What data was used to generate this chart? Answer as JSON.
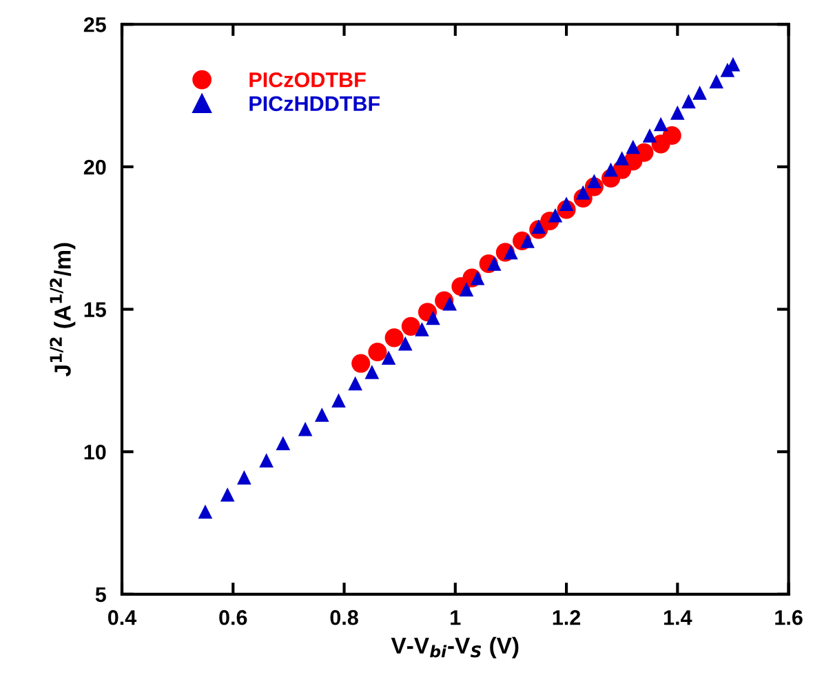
{
  "chart_data": {
    "type": "scatter",
    "xlabel": "V-V$_{bi}$-V$_{S}$ (V)",
    "ylabel": "J$^{1/2}$ (A$^{1/2}$/m)",
    "xlim": [
      0.4,
      1.6
    ],
    "xticks": [
      0.4,
      0.6,
      0.8,
      1,
      1.2,
      1.4,
      1.6
    ],
    "ylim": [
      5,
      25
    ],
    "yticks": [
      5,
      10,
      15,
      20,
      25
    ],
    "grid": false,
    "legend": "top left",
    "series": [
      {
        "name": "PICzODTBF",
        "color": "#ff0000",
        "marker": "circle",
        "x": [
          0.83,
          0.86,
          0.89,
          0.92,
          0.95,
          0.98,
          1.01,
          1.03,
          1.06,
          1.09,
          1.12,
          1.15,
          1.17,
          1.2,
          1.23,
          1.25,
          1.28,
          1.3,
          1.32,
          1.34,
          1.37,
          1.39
        ],
        "values": [
          13.1,
          13.5,
          14.0,
          14.4,
          14.9,
          15.3,
          15.8,
          16.1,
          16.6,
          17.0,
          17.4,
          17.8,
          18.1,
          18.5,
          18.9,
          19.3,
          19.6,
          19.9,
          20.2,
          20.5,
          20.8,
          21.1
        ]
      },
      {
        "name": "PICzHDDTBF",
        "color": "#0000cc",
        "marker": "triangle",
        "x": [
          0.55,
          0.59,
          0.62,
          0.66,
          0.69,
          0.73,
          0.76,
          0.79,
          0.82,
          0.85,
          0.88,
          0.91,
          0.94,
          0.96,
          0.99,
          1.02,
          1.04,
          1.07,
          1.1,
          1.13,
          1.15,
          1.18,
          1.2,
          1.23,
          1.25,
          1.28,
          1.3,
          1.32,
          1.35,
          1.37,
          1.4,
          1.42,
          1.44,
          1.47,
          1.49,
          1.5
        ],
        "values": [
          7.9,
          8.5,
          9.1,
          9.7,
          10.3,
          10.8,
          11.3,
          11.8,
          12.4,
          12.8,
          13.3,
          13.8,
          14.3,
          14.7,
          15.2,
          15.7,
          16.1,
          16.6,
          17.0,
          17.4,
          17.9,
          18.3,
          18.7,
          19.1,
          19.5,
          19.9,
          20.3,
          20.7,
          21.1,
          21.5,
          21.9,
          22.3,
          22.6,
          23.0,
          23.4,
          23.6
        ]
      }
    ]
  }
}
